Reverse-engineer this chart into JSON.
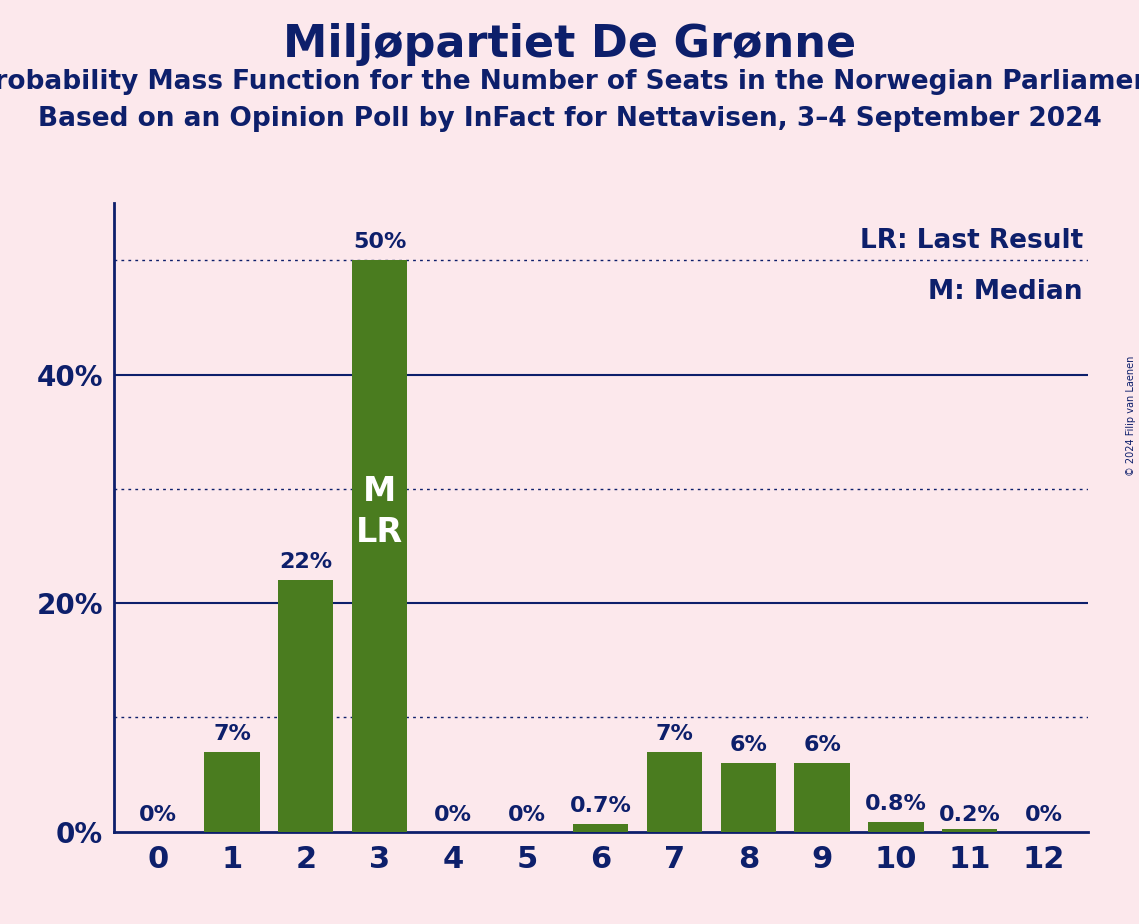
{
  "title": "Miljøpartiet De Grønne",
  "subtitle1": "Probability Mass Function for the Number of Seats in the Norwegian Parliament",
  "subtitle2": "Based on an Opinion Poll by InFact for Nettavisen, 3–4 September 2024",
  "copyright": "© 2024 Filip van Laenen",
  "categories": [
    0,
    1,
    2,
    3,
    4,
    5,
    6,
    7,
    8,
    9,
    10,
    11,
    12
  ],
  "values": [
    0.0,
    7.0,
    22.0,
    50.0,
    0.0,
    0.0,
    0.7,
    7.0,
    6.0,
    6.0,
    0.8,
    0.2,
    0.0
  ],
  "labels": [
    "0%",
    "7%",
    "22%",
    "50%",
    "0%",
    "0%",
    "0.7%",
    "7%",
    "6%",
    "6%",
    "0.8%",
    "0.2%",
    "0%"
  ],
  "bar_color": "#4a7c1f",
  "background_color": "#fce8ec",
  "text_color": "#0d1f6b",
  "title_fontsize": 32,
  "subtitle_fontsize": 19,
  "label_fontsize": 16,
  "axis_label_fontsize": 20,
  "yticks": [
    0,
    20,
    40
  ],
  "ylim": [
    0,
    55
  ],
  "solid_lines": [
    20,
    40
  ],
  "dotted_lines": [
    10,
    30,
    50
  ],
  "median_bar": 3,
  "lr_bar": 3,
  "legend_lr": "LR: Last Result",
  "legend_m": "M: Median"
}
